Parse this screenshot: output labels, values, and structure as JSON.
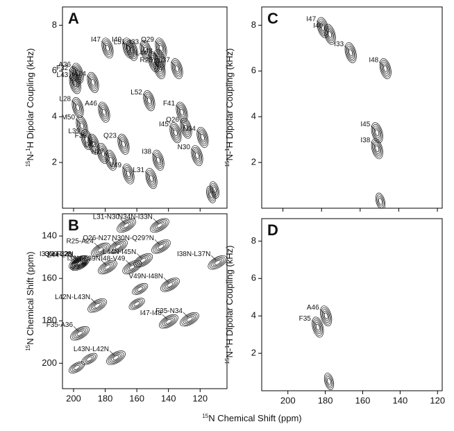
{
  "xlabel": [
    "15",
    "N Chemical Shift (ppm)"
  ],
  "chart_data": [
    {
      "type": "contour",
      "panel": "A",
      "ylabel": [
        "15",
        "N-",
        "1",
        "H Dipolar Coupling (kHz)"
      ],
      "xlim": [
        207,
        103
      ],
      "ylim": [
        0,
        8.8
      ],
      "xticks": [
        200,
        180,
        160,
        140,
        120
      ],
      "yticks": [
        2,
        4,
        6,
        8
      ],
      "peaks": [
        {
          "label": "A36",
          "x": 197.3,
          "y": 5.9
        },
        {
          "label": "F32",
          "x": 199,
          "y": 5.75
        },
        {
          "label": "L43",
          "x": 199,
          "y": 5.45
        },
        {
          "label": "A24",
          "x": 187.7,
          "y": 5.5
        },
        {
          "label": "L28",
          "x": 197.3,
          "y": 4.4
        },
        {
          "label": "M50",
          "x": 194.7,
          "y": 3.6
        },
        {
          "label": "L39",
          "x": 191.6,
          "y": 3.0
        },
        {
          "label": "F35",
          "x": 187.3,
          "y": 2.8
        },
        {
          "label": "L42",
          "x": 181.5,
          "y": 2.4
        },
        {
          "label": "N27",
          "x": 176.3,
          "y": 2.1
        },
        {
          "label": "V49",
          "x": 165.3,
          "y": 1.5
        },
        {
          "label": "Q23",
          "x": 168.4,
          "y": 2.8
        },
        {
          "label": "A46",
          "x": 180.7,
          "y": 4.2
        },
        {
          "label": "L52",
          "x": 152.2,
          "y": 4.7
        },
        {
          "label": "L31",
          "x": 150.8,
          "y": 1.3
        },
        {
          "label": "I38",
          "x": 146.4,
          "y": 2.1
        },
        {
          "label": "I45",
          "x": 135.5,
          "y": 3.3
        },
        {
          "label": "F41",
          "x": 131.5,
          "y": 4.2
        },
        {
          "label": "Q26",
          "x": 128.9,
          "y": 3.5
        },
        {
          "label": "N34",
          "x": 118.4,
          "y": 3.1
        },
        {
          "label": "N30",
          "x": 121.9,
          "y": 2.3
        },
        {
          "label": "I33",
          "x": 154.3,
          "y": 6.9
        },
        {
          "label": "Q29",
          "x": 144.7,
          "y": 7.0
        },
        {
          "label": "I48",
          "x": 145.6,
          "y": 6.5
        },
        {
          "label": "L44",
          "x": 149.1,
          "y": 6.4
        },
        {
          "label": "R25",
          "x": 145.6,
          "y": 6.1
        },
        {
          "label": "L37",
          "x": 134.6,
          "y": 6.1
        },
        {
          "label": "L51",
          "x": 163,
          "y": 6.9
        },
        {
          "label": "I47",
          "x": 178.5,
          "y": 7.0
        },
        {
          "label": "I40",
          "x": 165.3,
          "y": 7.0
        },
        {
          "x": 113,
          "y": 0.6
        },
        {
          "x": 111,
          "y": 0.8
        }
      ]
    },
    {
      "type": "contour",
      "panel": "B",
      "ylabel": [
        "15",
        "N Chemical Shift (ppm)"
      ],
      "xlim": [
        207,
        103
      ],
      "ylim": [
        129.5,
        212
      ],
      "xticks": [
        200,
        180,
        160,
        140,
        120
      ],
      "yticks": [
        140,
        160,
        180,
        200
      ],
      "peaks": [
        {
          "label": "L31-N30",
          "x": 166.6,
          "y": 135
        },
        {
          "label": "N34N-I33N",
          "x": 145.6,
          "y": 135
        },
        {
          "label": "N30N-Q29?N",
          "x": 144.7,
          "y": 145
        },
        {
          "label": "Q26-N27",
          "x": 171.9,
          "y": 145
        },
        {
          "label": "L44N-I45N",
          "x": 156,
          "y": 151.5
        },
        {
          "label": "I48-V49",
          "x": 163,
          "y": 154.7
        },
        {
          "label": "R25-A24",
          "x": 182.9,
          "y": 146.5
        },
        {
          "label": "Q29-L28",
          "x": 196.9,
          "y": 152.5
        },
        {
          "label": "L44-L43",
          "x": 196,
          "y": 153
        },
        {
          "label": "I38N-L39N",
          "x": 178.5,
          "y": 154.7
        },
        {
          "label": "I33N-F32N",
          "x": 195.7,
          "y": 152.5
        },
        {
          "label": "L42N-L43N",
          "x": 185,
          "y": 172.8
        },
        {
          "label": "F35-A36",
          "x": 196,
          "y": 185.9
        },
        {
          "label": "I38N-L37N",
          "x": 109,
          "y": 152.5
        },
        {
          "label": "V49N-I48N",
          "x": 139,
          "y": 163
        },
        {
          "label": "I47-I48",
          "x": 139.9,
          "y": 180.3
        },
        {
          "label": "F35-N34",
          "x": 126.7,
          "y": 179.3
        },
        {
          "label": "L43N-L42N",
          "x": 173.2,
          "y": 197.4
        },
        {
          "x": 190,
          "y": 198
        },
        {
          "x": 198,
          "y": 202
        },
        {
          "x": 158,
          "y": 165
        },
        {
          "x": 160,
          "y": 172
        }
      ]
    },
    {
      "type": "contour",
      "panel": "C",
      "ylabel": [
        "15",
        "N-",
        "1",
        "H Dipolar Coupling (kHz)"
      ],
      "xlim": [
        211,
        117.5
      ],
      "ylim": [
        0,
        8.8
      ],
      "xticks": [
        200,
        180,
        160,
        140,
        120
      ],
      "yticks": [
        2,
        4,
        6,
        8
      ],
      "peaks": [
        {
          "label": "I47",
          "x": 179.3,
          "y": 7.9
        },
        {
          "label": "I40",
          "x": 175.7,
          "y": 7.6
        },
        {
          "label": "I33",
          "x": 164.9,
          "y": 6.8
        },
        {
          "label": "I48",
          "x": 146.9,
          "y": 6.1
        },
        {
          "label": "I45",
          "x": 151.2,
          "y": 3.3
        },
        {
          "label": "I38",
          "x": 151.2,
          "y": 2.6
        },
        {
          "x": 149.5,
          "y": 0.3
        }
      ]
    },
    {
      "type": "contour",
      "panel": "D",
      "ylabel": [
        "15",
        "N-",
        "1",
        "H Dipolar Coupling (kHz)"
      ],
      "xlim": [
        214,
        117.5
      ],
      "ylim": [
        0,
        9.2
      ],
      "xticks": [
        200,
        180,
        160,
        140,
        120
      ],
      "yticks": [
        2,
        4,
        6,
        8
      ],
      "peaks": [
        {
          "label": "A46",
          "x": 179.6,
          "y": 4.0
        },
        {
          "label": "F35",
          "x": 184,
          "y": 3.4
        },
        {
          "x": 178,
          "y": 0.5
        }
      ]
    }
  ]
}
